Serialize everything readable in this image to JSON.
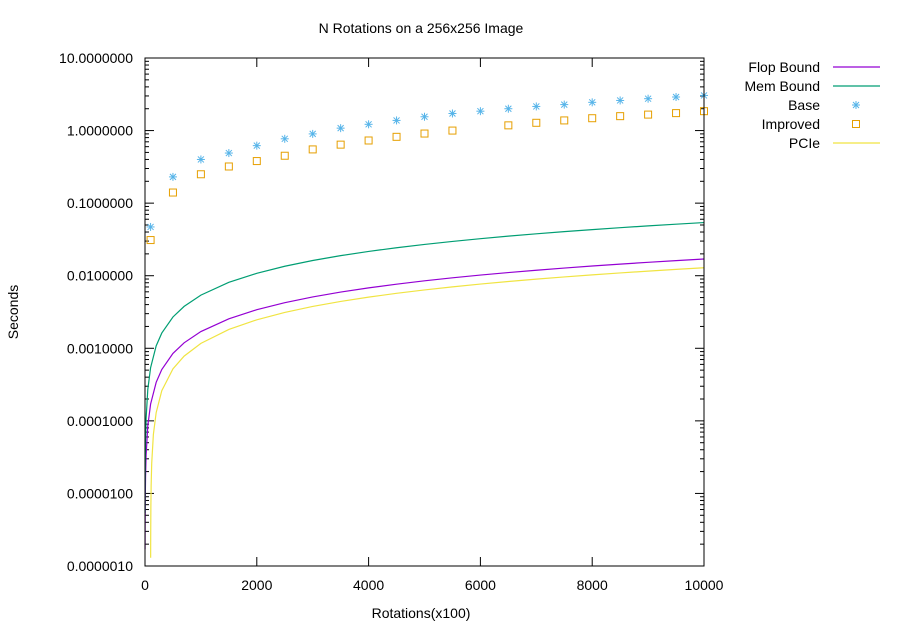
{
  "chart_data": {
    "type": "line",
    "title": "N Rotations on a 256x256 Image",
    "xlabel": "Rotations(x100)",
    "ylabel": "Seconds",
    "xlim": [
      0,
      10000
    ],
    "ylim": [
      1e-06,
      10
    ],
    "yscale": "log",
    "grid": false,
    "legend_position": "top-right outside",
    "x_ticks": [
      "0",
      "2000",
      "4000",
      "6000",
      "8000",
      "10000"
    ],
    "y_ticks": [
      "0.0000010",
      "0.0000100",
      "0.0001000",
      "0.0010000",
      "0.0100000",
      "0.1000000",
      "1.0000000",
      "10.0000000"
    ],
    "series": [
      {
        "name": "Flop Bound",
        "style": "line",
        "color": "#9400d3",
        "x": [
          1,
          2,
          5,
          10,
          20,
          50,
          100,
          200,
          300,
          500,
          700,
          1000,
          1500,
          2000,
          2500,
          3000,
          3500,
          4000,
          4500,
          5000,
          5500,
          6000,
          6500,
          7000,
          7500,
          8000,
          8500,
          9000,
          9500,
          10000
        ],
        "y": [
          1.7e-06,
          3.4e-06,
          8.5e-06,
          1.7e-05,
          3.4e-05,
          8.5e-05,
          0.00017,
          0.00034,
          0.00051,
          0.00085,
          0.00119,
          0.0017,
          0.00255,
          0.0034,
          0.00425,
          0.0051,
          0.00595,
          0.0068,
          0.00765,
          0.0085,
          0.00935,
          0.0102,
          0.01105,
          0.0119,
          0.01275,
          0.0136,
          0.01445,
          0.0153,
          0.01615,
          0.017
        ]
      },
      {
        "name": "Mem Bound",
        "style": "line",
        "color": "#009e73",
        "x": [
          1,
          2,
          5,
          10,
          20,
          50,
          100,
          200,
          300,
          500,
          700,
          1000,
          1500,
          2000,
          2500,
          3000,
          3500,
          4000,
          4500,
          5000,
          5500,
          6000,
          6500,
          7000,
          7500,
          8000,
          8500,
          9000,
          9500,
          10000
        ],
        "y": [
          5.4e-06,
          1.08e-05,
          2.7e-05,
          5.4e-05,
          0.000108,
          0.00027,
          0.00054,
          0.00108,
          0.00162,
          0.0027,
          0.00378,
          0.0054,
          0.0081,
          0.0108,
          0.0135,
          0.0162,
          0.0189,
          0.0216,
          0.0243,
          0.027,
          0.0297,
          0.0324,
          0.0351,
          0.0378,
          0.0405,
          0.0432,
          0.0459,
          0.0486,
          0.0513,
          0.054
        ]
      },
      {
        "name": "Base",
        "style": "points",
        "marker": "asterisk",
        "color": "#56b4e9",
        "x": [
          100,
          500,
          1000,
          1500,
          2000,
          2500,
          3000,
          3500,
          4000,
          4500,
          5000,
          5500,
          6000,
          6500,
          7000,
          7500,
          8000,
          8500,
          9000,
          9500,
          10000
        ],
        "y": [
          0.047,
          0.23,
          0.4,
          0.49,
          0.62,
          0.77,
          0.9,
          1.08,
          1.22,
          1.38,
          1.55,
          1.72,
          1.85,
          2.0,
          2.15,
          2.28,
          2.45,
          2.6,
          2.75,
          2.9,
          3.05
        ]
      },
      {
        "name": "Improved",
        "style": "points",
        "marker": "square",
        "color": "#e69f00",
        "x": [
          100,
          500,
          1000,
          1500,
          2000,
          2500,
          3000,
          3500,
          4000,
          4500,
          5000,
          5500,
          6500,
          7000,
          7500,
          8000,
          8500,
          9000,
          9500,
          10000
        ],
        "y": [
          0.031,
          0.14,
          0.25,
          0.32,
          0.38,
          0.45,
          0.55,
          0.64,
          0.73,
          0.82,
          0.91,
          1.0,
          1.18,
          1.28,
          1.38,
          1.48,
          1.58,
          1.66,
          1.74,
          1.85
        ]
      },
      {
        "name": "PCIe",
        "style": "line",
        "color": "#f0e442",
        "x": [
          101,
          102,
          105,
          110,
          120,
          150,
          200,
          300,
          500,
          700,
          1000,
          1500,
          2000,
          2500,
          3000,
          3500,
          4000,
          4500,
          5000,
          5500,
          6000,
          6500,
          7000,
          7500,
          8000,
          8500,
          9000,
          9500,
          10000
        ],
        "y": [
          1.3e-06,
          2.6e-06,
          6.5e-06,
          1.3e-05,
          2.6e-05,
          6.5e-05,
          0.00013,
          0.00026,
          0.00052,
          0.00078,
          0.00117,
          0.00182,
          0.00247,
          0.00312,
          0.00377,
          0.00442,
          0.00507,
          0.00572,
          0.00637,
          0.00702,
          0.00767,
          0.00832,
          0.00897,
          0.00962,
          0.01027,
          0.01092,
          0.01157,
          0.01222,
          0.01287
        ]
      }
    ]
  }
}
